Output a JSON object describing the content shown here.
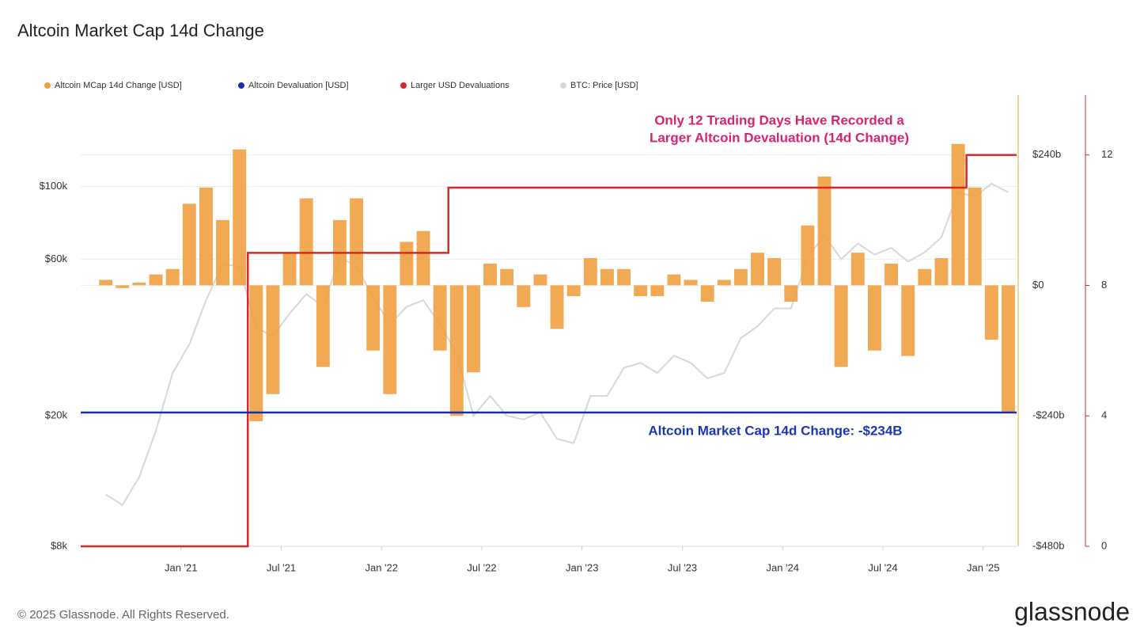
{
  "chart_data": {
    "type": "bar",
    "title": "Altcoin Market Cap 14d Change",
    "footer": "© 2025 Glassnode. All Rights Reserved.",
    "brand": "glassnode",
    "annotations": [
      {
        "text": [
          "Only 12 Trading Days Have Recorded a",
          "Larger Altcoin Devaluation (14d Change)"
        ],
        "color": "#d6246e"
      },
      {
        "text": [
          "Altcoin Market Cap 14d Change: -$234B"
        ],
        "color": "#1a35b8"
      }
    ],
    "xlim": [
      "2020-07",
      "2025-03"
    ],
    "xticks": [
      {
        "value": "2021-01",
        "label": "Jan '21"
      },
      {
        "value": "2021-07",
        "label": "Jul '21"
      },
      {
        "value": "2022-01",
        "label": "Jan '22"
      },
      {
        "value": "2022-07",
        "label": "Jul '22"
      },
      {
        "value": "2023-01",
        "label": "Jan '23"
      },
      {
        "value": "2023-07",
        "label": "Jul '23"
      },
      {
        "value": "2024-01",
        "label": "Jan '24"
      },
      {
        "value": "2024-07",
        "label": "Jul '24"
      },
      {
        "value": "2025-01",
        "label": "Jan '25"
      }
    ],
    "ylim": [
      8000,
      190000
    ],
    "log": true,
    "yticks": [
      {
        "value": 8000,
        "label": "$8k"
      },
      {
        "value": 20000,
        "label": "$20k"
      },
      {
        "value": 60000,
        "label": "$60k"
      },
      {
        "value": 100000,
        "label": "$100k"
      }
    ],
    "y2lim": [
      -480,
      350
    ],
    "y2ticks": [
      {
        "value": 240,
        "label": "$240b"
      },
      {
        "value": 0,
        "label": "$0"
      },
      {
        "value": -240,
        "label": "-$240b"
      },
      {
        "value": -480,
        "label": "-$480b"
      }
    ],
    "y3lim": [
      0,
      13.84
    ],
    "y3ticks": [
      0,
      4,
      8,
      12
    ],
    "grid": true,
    "x": [
      "2020-08",
      "2020-09",
      "2020-10",
      "2020-11",
      "2020-12",
      "2021-01",
      "2021-02",
      "2021-03",
      "2021-04",
      "2021-05",
      "2021-06",
      "2021-07",
      "2021-08",
      "2021-09",
      "2021-10",
      "2021-11",
      "2021-12",
      "2022-01",
      "2022-02",
      "2022-03",
      "2022-04",
      "2022-05",
      "2022-06",
      "2022-07",
      "2022-08",
      "2022-09",
      "2022-10",
      "2022-11",
      "2022-12",
      "2023-01",
      "2023-02",
      "2023-03",
      "2023-04",
      "2023-05",
      "2023-06",
      "2023-07",
      "2023-08",
      "2023-09",
      "2023-10",
      "2023-11",
      "2023-12",
      "2024-01",
      "2024-02",
      "2024-03",
      "2024-04",
      "2024-05",
      "2024-06",
      "2024-07",
      "2024-08",
      "2024-09",
      "2024-10",
      "2024-11",
      "2024-12",
      "2025-01",
      "2025-02"
    ],
    "series": [
      {
        "name": "Altcoin MCap 14d Change [USD]",
        "color": "#f0a040",
        "axis": "y2",
        "kind": "bar",
        "values": [
          10,
          -5,
          5,
          20,
          30,
          150,
          180,
          120,
          250,
          -250,
          -200,
          60,
          160,
          -150,
          120,
          160,
          -120,
          -200,
          80,
          100,
          -120,
          -240,
          -160,
          40,
          30,
          -40,
          20,
          -80,
          -20,
          50,
          30,
          30,
          -20,
          -20,
          20,
          10,
          -30,
          10,
          30,
          60,
          50,
          -30,
          110,
          200,
          -150,
          60,
          -120,
          40,
          -130,
          30,
          50,
          260,
          180,
          -100,
          -234
        ]
      },
      {
        "name": "Altcoin Devaluation [USD]",
        "color": "#1a2ea8",
        "axis": "y2",
        "kind": "hline",
        "value": -234
      },
      {
        "name": "Larger USD Devaluations",
        "color": "#d42a2a",
        "axis": "y3",
        "kind": "step",
        "values": [
          0,
          0,
          0,
          0,
          0,
          0,
          0,
          0,
          0,
          9,
          9,
          9,
          9,
          9,
          9,
          9,
          9,
          9,
          9,
          9,
          9,
          11,
          11,
          11,
          11,
          11,
          11,
          11,
          11,
          11,
          11,
          11,
          11,
          11,
          11,
          11,
          11,
          11,
          11,
          11,
          11,
          11,
          11,
          11,
          11,
          11,
          11,
          11,
          11,
          11,
          11,
          11,
          12,
          12,
          12
        ]
      },
      {
        "name": "BTC: Price [USD]",
        "color": "#d8d8d8",
        "axis": "y",
        "kind": "line",
        "values": [
          11500,
          10700,
          13000,
          18000,
          27000,
          33000,
          45000,
          58000,
          57000,
          37000,
          35000,
          41000,
          47000,
          43000,
          61000,
          57000,
          46000,
          38000,
          43000,
          45000,
          38000,
          31000,
          20000,
          23000,
          20000,
          19500,
          20500,
          17000,
          16500,
          23000,
          23000,
          28000,
          29000,
          27000,
          30500,
          29000,
          26000,
          27000,
          34500,
          37500,
          42500,
          42500,
          61000,
          71000,
          60000,
          67000,
          62000,
          65000,
          59000,
          63000,
          70000,
          96000,
          93000,
          102000,
          96000
        ]
      }
    ]
  }
}
